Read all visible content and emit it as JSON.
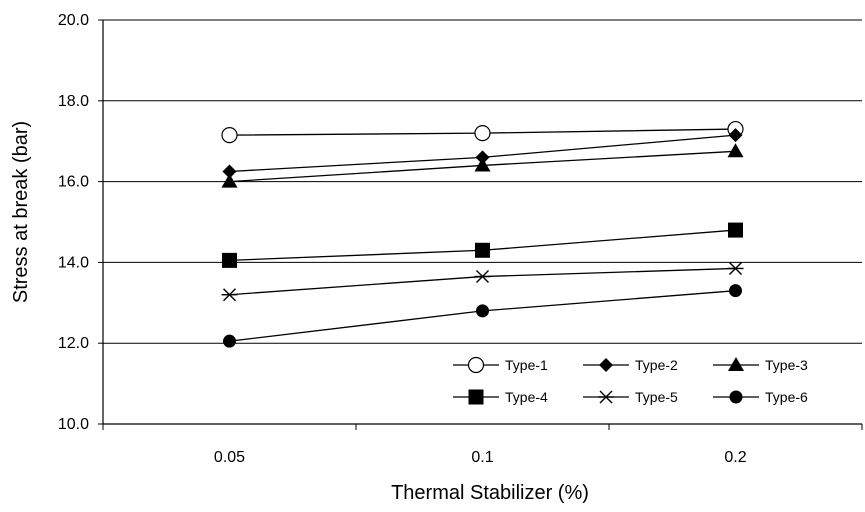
{
  "chart_data": {
    "type": "line",
    "title": "",
    "xlabel": "Thermal Stabilizer (%)",
    "ylabel": "Stress at break (bar)",
    "categories": [
      "0.05",
      "0.1",
      "0.2"
    ],
    "ylim": [
      10.0,
      20.0
    ],
    "yticks": [
      "10.0",
      "12.0",
      "14.0",
      "16.0",
      "18.0",
      "20.0"
    ],
    "grid": "horizontal",
    "legend_position": "bottom-right",
    "series": [
      {
        "name": "Type-1",
        "marker": "circle-open",
        "values": [
          17.15,
          17.2,
          17.3
        ]
      },
      {
        "name": "Type-2",
        "marker": "diamond",
        "values": [
          16.25,
          16.6,
          17.15
        ]
      },
      {
        "name": "Type-3",
        "marker": "triangle",
        "values": [
          16.0,
          16.4,
          16.75
        ]
      },
      {
        "name": "Type-4",
        "marker": "square",
        "values": [
          14.05,
          14.3,
          14.8
        ]
      },
      {
        "name": "Type-5",
        "marker": "asterisk",
        "values": [
          13.2,
          13.65,
          13.85
        ]
      },
      {
        "name": "Type-6",
        "marker": "circle-filled",
        "values": [
          12.05,
          12.8,
          13.3
        ]
      }
    ]
  }
}
